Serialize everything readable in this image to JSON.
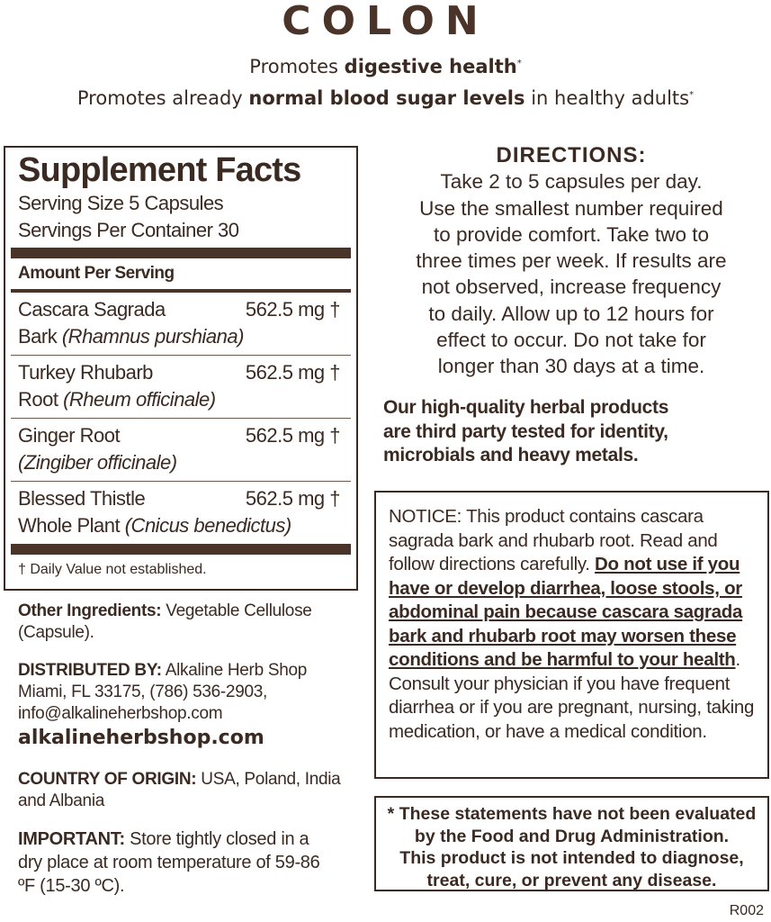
{
  "title": "COLON",
  "claims": [
    {
      "pre": "Promotes ",
      "bold": "digestive health",
      "post": "",
      "mark": "*"
    },
    {
      "pre": "Promotes already ",
      "bold": "normal blood sugar levels",
      "post": " in healthy adults",
      "mark": "*"
    }
  ],
  "facts": {
    "heading": "Supplement Facts",
    "serving_size": "Serving Size 5 Capsules",
    "servings_per_container": "Servings Per Container 30",
    "amount_per_serving": "Amount Per Serving",
    "ingredients": [
      {
        "name": "Cascara Sagrada",
        "line2": "Bark ",
        "latin": "(Rhamnus purshiana)",
        "amount": "562.5 mg †"
      },
      {
        "name": "Turkey Rhubarb",
        "line2": "Root ",
        "latin": "(Rheum officinale)",
        "amount": "562.5 mg †"
      },
      {
        "name": "Ginger Root",
        "line2": "",
        "latin": "(Zingiber officinale)",
        "amount": "562.5 mg †"
      },
      {
        "name": "Blessed Thistle",
        "line2": "Whole Plant ",
        "latin": "(Cnicus benedictus)",
        "amount": "562.5 mg †"
      }
    ],
    "footnote": "† Daily Value not established."
  },
  "other": {
    "label": "Other Ingredients:",
    "text": " Vegetable Cellulose (Capsule)."
  },
  "distributor": {
    "label": "DISTRIBUTED BY:",
    "lines": [
      " Alkaline Herb Shop",
      "Miami, FL 33175, (786) 536-2903,",
      "info@alkalineherbshop.com"
    ]
  },
  "website": "alkalineherbshop.com",
  "origin": {
    "label": "COUNTRY OF ORIGIN:",
    "text": " USA, Poland, India and Albania"
  },
  "important": {
    "label": "IMPORTANT:",
    "text": " Store tightly closed in a dry place at room temperature of 59-86 ºF (15-30 ºC)."
  },
  "directions": {
    "heading": "DIRECTIONS:",
    "lines": [
      "Take 2 to 5 capsules per day.",
      "Use the smallest number required",
      "to provide comfort. Take two to",
      "three times per week. If results are",
      "not observed, increase frequency",
      "to daily. Allow up to 12 hours for",
      "effect to occur. Do not take for",
      "longer than 30 days at a time."
    ]
  },
  "quality": [
    "Our high-quality herbal products",
    "are third party tested for identity,",
    "microbials and heavy metals."
  ],
  "notice": {
    "pre": "NOTICE: This product contains cascara sagrada bark and rhubarb root. Read and follow directions carefully. ",
    "warning": "Do not use if you have or develop diarrhea, loose stools, or abdominal pain because cascara sagrada bark and rhubarb root may worsen these conditions and be harmful to your health",
    "post": ". Consult your physician if you have frequent diarrhea or if you are pregnant, nursing, taking medication, or have a medical condition."
  },
  "fda": [
    "* These statements have not been evaluated",
    "by the Food and Drug Administration.",
    "This product is not intended to diagnose,",
    "treat, cure, or prevent any disease."
  ],
  "code": "R002",
  "colors": {
    "text": "#3b2a22",
    "bars": "#4a3328"
  }
}
